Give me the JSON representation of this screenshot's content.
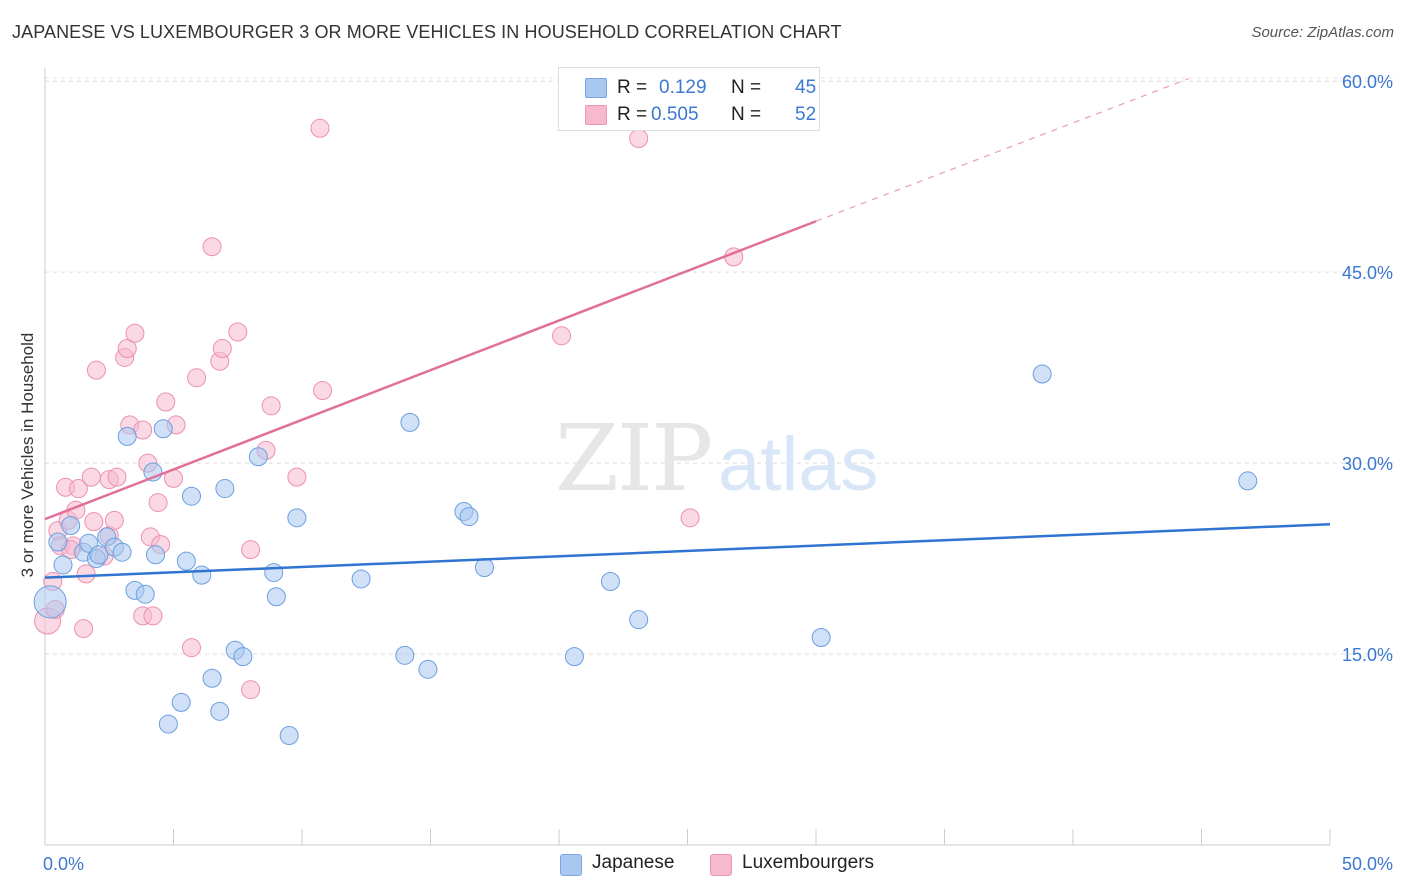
{
  "title": "JAPANESE VS LUXEMBOURGER 3 OR MORE VEHICLES IN HOUSEHOLD CORRELATION CHART",
  "source": "Source: ZipAtlas.com",
  "watermark": {
    "zip": "ZIP",
    "atlas": "atlas"
  },
  "legend": {
    "rows": [
      {
        "r_label": "R =",
        "r_value": "0.129",
        "n_label": "N =",
        "n_value": "45",
        "color": "#a9c8f0"
      },
      {
        "r_label": "R =",
        "r_value": "0.505",
        "n_label": "N =",
        "n_value": "52",
        "color": "#f6b9cd"
      }
    ]
  },
  "bottom_legend": [
    {
      "label": "Japanese",
      "color": "#a9c8f0"
    },
    {
      "label": "Luxembourgers",
      "color": "#f6b9cd"
    }
  ],
  "chart_data": {
    "type": "scatter",
    "title": "JAPANESE VS LUXEMBOURGER 3 OR MORE VEHICLES IN HOUSEHOLD CORRELATION CHART",
    "xlabel": "",
    "ylabel": "3 or more Vehicles in Household",
    "xlim": [
      0,
      50
    ],
    "ylim": [
      0,
      62
    ],
    "x_tick_labels": [
      {
        "value": 0,
        "label": "0.0%"
      },
      {
        "value": 50,
        "label": "50.0%"
      }
    ],
    "y_tick_labels": [
      {
        "value": 15,
        "label": "15.0%"
      },
      {
        "value": 30,
        "label": "30.0%"
      },
      {
        "value": 45,
        "label": "45.0%"
      },
      {
        "value": 60,
        "label": "60.0%"
      }
    ],
    "grid": true,
    "legend_position": "top-center",
    "series": [
      {
        "name": "Japanese",
        "color": "#a9c8f0",
        "stroke": "#6b9fe0",
        "trend": {
          "x": [
            0,
            50
          ],
          "y": [
            21.0,
            25.2
          ],
          "color": "#2f74d0"
        },
        "points": [
          [
            0.2,
            19.1,
            16
          ],
          [
            0.7,
            22.0,
            9
          ],
          [
            1.0,
            25.1,
            9
          ],
          [
            0.5,
            23.8,
            9
          ],
          [
            1.5,
            23.0,
            9
          ],
          [
            1.7,
            23.7,
            9
          ],
          [
            2.0,
            22.5,
            9
          ],
          [
            2.1,
            22.8,
            9
          ],
          [
            2.4,
            24.2,
            9
          ],
          [
            2.7,
            23.4,
            9
          ],
          [
            3.0,
            23.0,
            9
          ],
          [
            3.2,
            32.1,
            9
          ],
          [
            3.5,
            20.0,
            9
          ],
          [
            3.9,
            19.7,
            9
          ],
          [
            4.2,
            29.3,
            9
          ],
          [
            4.3,
            22.8,
            9
          ],
          [
            4.6,
            32.7,
            9
          ],
          [
            5.5,
            22.3,
            9
          ],
          [
            5.7,
            27.4,
            9
          ],
          [
            6.1,
            21.2,
            9
          ],
          [
            4.8,
            9.5,
            9
          ],
          [
            5.3,
            11.2,
            9
          ],
          [
            6.5,
            13.1,
            9
          ],
          [
            7.0,
            28.0,
            9
          ],
          [
            6.8,
            10.5,
            9
          ],
          [
            7.4,
            15.3,
            9
          ],
          [
            7.7,
            14.8,
            9
          ],
          [
            8.3,
            30.5,
            9
          ],
          [
            8.9,
            21.4,
            9
          ],
          [
            9.0,
            19.5,
            9
          ],
          [
            9.5,
            8.6,
            9
          ],
          [
            9.8,
            25.7,
            9
          ],
          [
            12.3,
            20.9,
            9
          ],
          [
            14.0,
            14.9,
            9
          ],
          [
            14.2,
            33.2,
            9
          ],
          [
            14.9,
            13.8,
            9
          ],
          [
            16.3,
            26.2,
            9
          ],
          [
            16.5,
            25.8,
            9
          ],
          [
            17.1,
            21.8,
            9
          ],
          [
            20.6,
            14.8,
            9
          ],
          [
            22.0,
            20.7,
            9
          ],
          [
            23.1,
            17.7,
            9
          ],
          [
            30.2,
            16.3,
            9
          ],
          [
            38.8,
            37.0,
            9
          ],
          [
            46.8,
            28.6,
            9
          ]
        ]
      },
      {
        "name": "Luxembourgers",
        "color": "#f6b9cd",
        "stroke": "#ec8fb0",
        "trend": {
          "x": [
            0,
            30,
            44.5
          ],
          "y": [
            25.6,
            49.0,
            60.2
          ],
          "color": "#e0709a"
        },
        "points": [
          [
            0.1,
            17.6,
            13
          ],
          [
            0.3,
            20.7,
            9
          ],
          [
            0.5,
            24.7,
            9
          ],
          [
            0.6,
            23.5,
            9
          ],
          [
            0.9,
            25.5,
            9
          ],
          [
            0.8,
            28.1,
            9
          ],
          [
            1.1,
            23.5,
            9
          ],
          [
            1.2,
            26.3,
            9
          ],
          [
            1.3,
            28.0,
            9
          ],
          [
            1.5,
            17.0,
            9
          ],
          [
            1.6,
            21.3,
            9
          ],
          [
            1.8,
            28.9,
            9
          ],
          [
            1.9,
            25.4,
            9
          ],
          [
            2.0,
            37.3,
            9
          ],
          [
            2.3,
            22.7,
            9
          ],
          [
            2.5,
            24.3,
            9
          ],
          [
            2.5,
            28.7,
            9
          ],
          [
            2.7,
            25.5,
            9
          ],
          [
            2.8,
            28.9,
            9
          ],
          [
            3.1,
            38.3,
            9
          ],
          [
            3.2,
            39.0,
            9
          ],
          [
            3.3,
            33.0,
            9
          ],
          [
            3.5,
            40.2,
            9
          ],
          [
            3.8,
            32.6,
            9
          ],
          [
            3.8,
            18.0,
            9
          ],
          [
            4.0,
            30.0,
            9
          ],
          [
            4.1,
            24.2,
            9
          ],
          [
            4.2,
            18.0,
            9
          ],
          [
            4.4,
            26.9,
            9
          ],
          [
            4.5,
            23.6,
            9
          ],
          [
            4.7,
            34.8,
            9
          ],
          [
            5.0,
            28.8,
            9
          ],
          [
            5.1,
            33.0,
            9
          ],
          [
            5.7,
            15.5,
            9
          ],
          [
            5.9,
            36.7,
            9
          ],
          [
            6.5,
            47.0,
            9
          ],
          [
            6.8,
            38.0,
            9
          ],
          [
            6.9,
            39.0,
            9
          ],
          [
            7.5,
            40.3,
            9
          ],
          [
            8.0,
            23.2,
            9
          ],
          [
            8.0,
            12.2,
            9
          ],
          [
            8.6,
            31.0,
            9
          ],
          [
            8.8,
            34.5,
            9
          ],
          [
            9.8,
            28.9,
            9
          ],
          [
            10.7,
            56.3,
            9
          ],
          [
            10.8,
            35.7,
            9
          ],
          [
            20.1,
            40.0,
            9
          ],
          [
            23.1,
            55.5,
            9
          ],
          [
            25.1,
            25.7,
            9
          ],
          [
            26.8,
            46.2,
            9
          ],
          [
            0.4,
            18.5,
            9
          ],
          [
            1.0,
            23.2,
            9
          ]
        ]
      }
    ]
  }
}
